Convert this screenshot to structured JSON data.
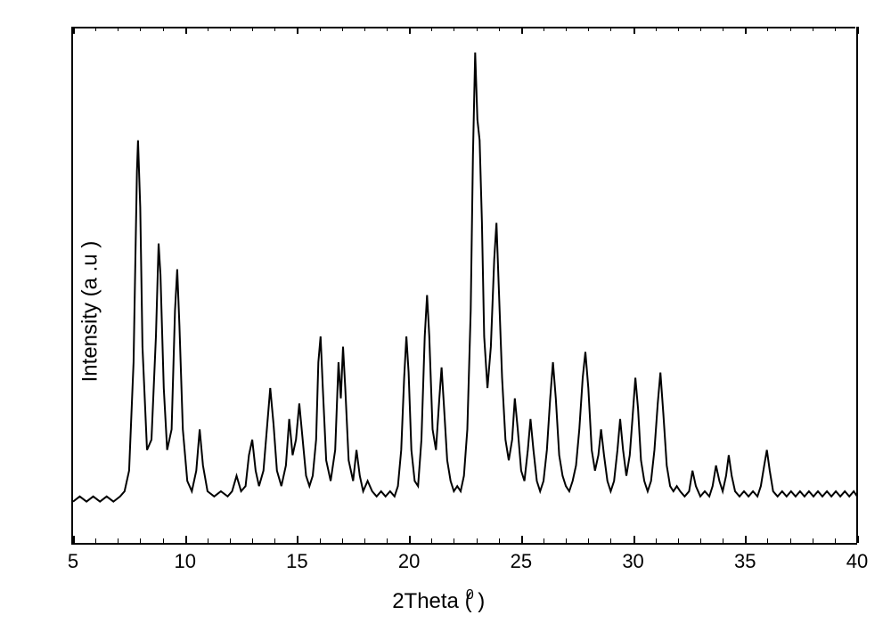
{
  "chart": {
    "type": "line",
    "xlabel": "2Theta (  )",
    "xlabel_degree": "0",
    "ylabel": "Intensity (a .u )",
    "xlim": [
      5,
      40
    ],
    "ylim": [
      0,
      100
    ],
    "xtick_major_step": 5,
    "xtick_minor_step": 1,
    "xtick_labels": [
      "5",
      "10",
      "15",
      "20",
      "25",
      "30",
      "35",
      "40"
    ],
    "line_color": "#000000",
    "line_width": 2,
    "background_color": "#ffffff",
    "border_color": "#000000",
    "label_fontsize": 24,
    "tick_fontsize": 22,
    "data_points": [
      [
        5.0,
        8
      ],
      [
        5.3,
        9
      ],
      [
        5.6,
        8
      ],
      [
        5.9,
        9
      ],
      [
        6.2,
        8
      ],
      [
        6.5,
        9
      ],
      [
        6.8,
        8
      ],
      [
        7.1,
        9
      ],
      [
        7.3,
        10
      ],
      [
        7.5,
        14
      ],
      [
        7.7,
        35
      ],
      [
        7.85,
        72
      ],
      [
        7.9,
        78
      ],
      [
        8.0,
        65
      ],
      [
        8.1,
        38
      ],
      [
        8.3,
        18
      ],
      [
        8.5,
        20
      ],
      [
        8.7,
        40
      ],
      [
        8.82,
        58
      ],
      [
        8.9,
        52
      ],
      [
        9.05,
        30
      ],
      [
        9.2,
        18
      ],
      [
        9.4,
        22
      ],
      [
        9.55,
        45
      ],
      [
        9.65,
        53
      ],
      [
        9.75,
        42
      ],
      [
        9.9,
        22
      ],
      [
        10.1,
        12
      ],
      [
        10.3,
        10
      ],
      [
        10.5,
        14
      ],
      [
        10.65,
        22
      ],
      [
        10.8,
        15
      ],
      [
        11.0,
        10
      ],
      [
        11.3,
        9
      ],
      [
        11.6,
        10
      ],
      [
        11.9,
        9
      ],
      [
        12.1,
        10
      ],
      [
        12.3,
        13
      ],
      [
        12.5,
        10
      ],
      [
        12.7,
        11
      ],
      [
        12.85,
        17
      ],
      [
        13.0,
        20
      ],
      [
        13.15,
        14
      ],
      [
        13.3,
        11
      ],
      [
        13.5,
        14
      ],
      [
        13.65,
        22
      ],
      [
        13.8,
        30
      ],
      [
        13.95,
        23
      ],
      [
        14.1,
        14
      ],
      [
        14.3,
        11
      ],
      [
        14.5,
        15
      ],
      [
        14.65,
        24
      ],
      [
        14.8,
        17
      ],
      [
        14.95,
        20
      ],
      [
        15.1,
        27
      ],
      [
        15.25,
        20
      ],
      [
        15.4,
        13
      ],
      [
        15.55,
        11
      ],
      [
        15.7,
        13
      ],
      [
        15.85,
        20
      ],
      [
        15.95,
        35
      ],
      [
        16.05,
        40
      ],
      [
        16.15,
        30
      ],
      [
        16.3,
        16
      ],
      [
        16.5,
        12
      ],
      [
        16.7,
        18
      ],
      [
        16.85,
        35
      ],
      [
        16.95,
        28
      ],
      [
        17.05,
        38
      ],
      [
        17.15,
        30
      ],
      [
        17.3,
        16
      ],
      [
        17.5,
        12
      ],
      [
        17.65,
        18
      ],
      [
        17.8,
        13
      ],
      [
        17.95,
        10
      ],
      [
        18.15,
        12
      ],
      [
        18.35,
        10
      ],
      [
        18.55,
        9
      ],
      [
        18.75,
        10
      ],
      [
        18.95,
        9
      ],
      [
        19.15,
        10
      ],
      [
        19.35,
        9
      ],
      [
        19.5,
        11
      ],
      [
        19.65,
        18
      ],
      [
        19.78,
        32
      ],
      [
        19.88,
        40
      ],
      [
        19.98,
        33
      ],
      [
        20.1,
        18
      ],
      [
        20.25,
        12
      ],
      [
        20.4,
        11
      ],
      [
        20.55,
        20
      ],
      [
        20.7,
        40
      ],
      [
        20.8,
        48
      ],
      [
        20.9,
        40
      ],
      [
        21.05,
        22
      ],
      [
        21.2,
        18
      ],
      [
        21.35,
        28
      ],
      [
        21.45,
        34
      ],
      [
        21.55,
        27
      ],
      [
        21.7,
        16
      ],
      [
        21.85,
        12
      ],
      [
        22.0,
        10
      ],
      [
        22.15,
        11
      ],
      [
        22.3,
        10
      ],
      [
        22.45,
        13
      ],
      [
        22.6,
        22
      ],
      [
        22.75,
        45
      ],
      [
        22.85,
        75
      ],
      [
        22.95,
        95
      ],
      [
        23.05,
        82
      ],
      [
        23.15,
        78
      ],
      [
        23.25,
        62
      ],
      [
        23.35,
        40
      ],
      [
        23.5,
        30
      ],
      [
        23.65,
        38
      ],
      [
        23.8,
        55
      ],
      [
        23.9,
        62
      ],
      [
        24.0,
        50
      ],
      [
        24.15,
        32
      ],
      [
        24.3,
        20
      ],
      [
        24.45,
        16
      ],
      [
        24.6,
        20
      ],
      [
        24.72,
        28
      ],
      [
        24.85,
        22
      ],
      [
        25.0,
        14
      ],
      [
        25.15,
        12
      ],
      [
        25.3,
        18
      ],
      [
        25.42,
        24
      ],
      [
        25.55,
        18
      ],
      [
        25.7,
        12
      ],
      [
        25.85,
        10
      ],
      [
        26.0,
        12
      ],
      [
        26.15,
        18
      ],
      [
        26.3,
        28
      ],
      [
        26.42,
        35
      ],
      [
        26.55,
        28
      ],
      [
        26.7,
        17
      ],
      [
        26.85,
        13
      ],
      [
        27.0,
        11
      ],
      [
        27.15,
        10
      ],
      [
        27.3,
        12
      ],
      [
        27.45,
        15
      ],
      [
        27.6,
        22
      ],
      [
        27.75,
        32
      ],
      [
        27.87,
        37
      ],
      [
        28.0,
        30
      ],
      [
        28.15,
        18
      ],
      [
        28.3,
        14
      ],
      [
        28.45,
        17
      ],
      [
        28.57,
        22
      ],
      [
        28.7,
        17
      ],
      [
        28.85,
        12
      ],
      [
        29.0,
        10
      ],
      [
        29.15,
        12
      ],
      [
        29.3,
        18
      ],
      [
        29.42,
        24
      ],
      [
        29.55,
        18
      ],
      [
        29.7,
        13
      ],
      [
        29.85,
        17
      ],
      [
        29.97,
        24
      ],
      [
        30.1,
        32
      ],
      [
        30.22,
        26
      ],
      [
        30.35,
        16
      ],
      [
        30.5,
        12
      ],
      [
        30.65,
        10
      ],
      [
        30.8,
        12
      ],
      [
        30.95,
        18
      ],
      [
        31.1,
        27
      ],
      [
        31.22,
        33
      ],
      [
        31.35,
        25
      ],
      [
        31.5,
        15
      ],
      [
        31.65,
        11
      ],
      [
        31.8,
        10
      ],
      [
        31.95,
        11
      ],
      [
        32.1,
        10
      ],
      [
        32.3,
        9
      ],
      [
        32.5,
        10
      ],
      [
        32.65,
        14
      ],
      [
        32.8,
        11
      ],
      [
        33.0,
        9
      ],
      [
        33.2,
        10
      ],
      [
        33.4,
        9
      ],
      [
        33.55,
        11
      ],
      [
        33.7,
        15
      ],
      [
        33.85,
        12
      ],
      [
        34.0,
        10
      ],
      [
        34.15,
        13
      ],
      [
        34.27,
        17
      ],
      [
        34.4,
        13
      ],
      [
        34.55,
        10
      ],
      [
        34.75,
        9
      ],
      [
        34.95,
        10
      ],
      [
        35.15,
        9
      ],
      [
        35.35,
        10
      ],
      [
        35.55,
        9
      ],
      [
        35.7,
        11
      ],
      [
        35.85,
        15
      ],
      [
        35.97,
        18
      ],
      [
        36.1,
        14
      ],
      [
        36.25,
        10
      ],
      [
        36.45,
        9
      ],
      [
        36.65,
        10
      ],
      [
        36.85,
        9
      ],
      [
        37.05,
        10
      ],
      [
        37.25,
        9
      ],
      [
        37.45,
        10
      ],
      [
        37.65,
        9
      ],
      [
        37.85,
        10
      ],
      [
        38.05,
        9
      ],
      [
        38.25,
        10
      ],
      [
        38.45,
        9
      ],
      [
        38.65,
        10
      ],
      [
        38.85,
        9
      ],
      [
        39.05,
        10
      ],
      [
        39.25,
        9
      ],
      [
        39.45,
        10
      ],
      [
        39.65,
        9
      ],
      [
        39.85,
        10
      ],
      [
        40.0,
        9
      ]
    ]
  }
}
